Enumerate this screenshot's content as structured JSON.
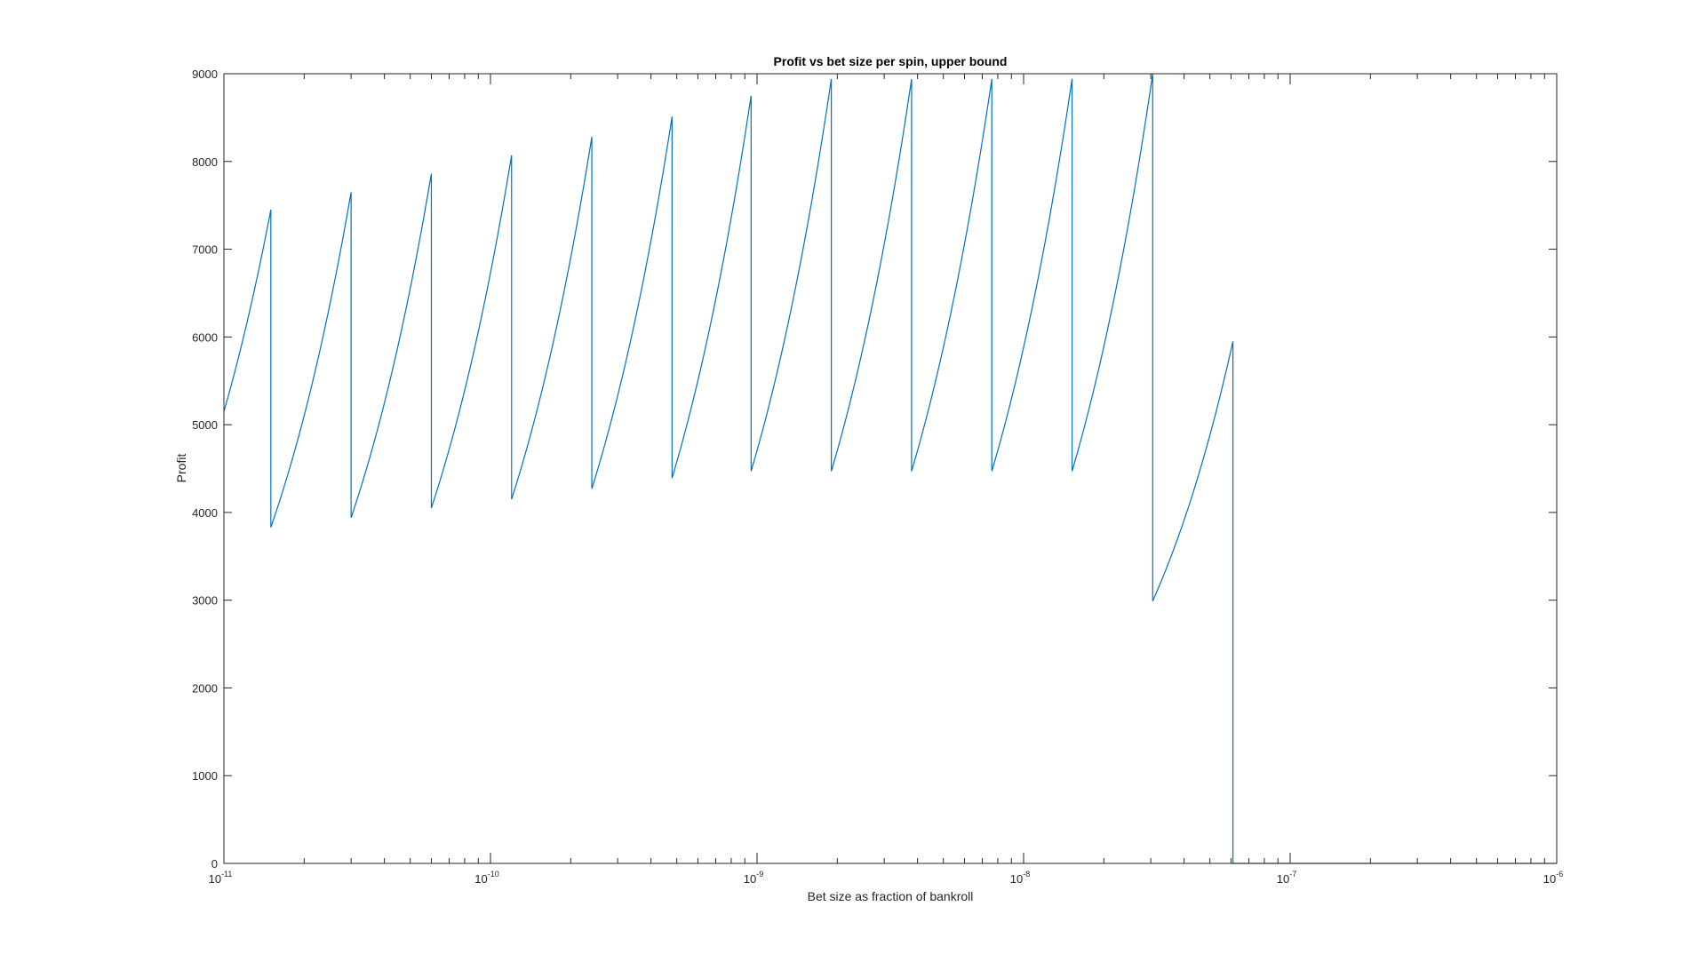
{
  "chart_data": {
    "type": "line",
    "title": "Profit vs bet size per spin, upper bound",
    "xlabel": "Bet size as fraction of bankroll",
    "ylabel": "Profit",
    "xscale": "log",
    "xlim": [
      1e-11,
      1e-06
    ],
    "ylim": [
      0,
      9000
    ],
    "grid": false,
    "legend": "none",
    "line_color": "#0072BD",
    "x_ticks": [
      {
        "base": "10",
        "exp": "-11"
      },
      {
        "base": "10",
        "exp": "-10"
      },
      {
        "base": "10",
        "exp": "-9"
      },
      {
        "base": "10",
        "exp": "-8"
      },
      {
        "base": "10",
        "exp": "-7"
      },
      {
        "base": "10",
        "exp": "-6"
      }
    ],
    "y_ticks": [
      "0",
      "1000",
      "2000",
      "3000",
      "4000",
      "5000",
      "6000",
      "7000",
      "8000",
      "9000"
    ],
    "series": [
      {
        "segments": [
          {
            "x0": 1e-11,
            "y0": 5150,
            "x1": 1.5e-11,
            "y1": 7450
          },
          {
            "x0": 1.5e-11,
            "y0": 3830,
            "x1": 3e-11,
            "y1": 7650
          },
          {
            "x0": 3e-11,
            "y0": 3940,
            "x1": 6e-11,
            "y1": 7860
          },
          {
            "x0": 6e-11,
            "y0": 4050,
            "x1": 1.2e-10,
            "y1": 8070
          },
          {
            "x0": 1.2e-10,
            "y0": 4150,
            "x1": 2.4e-10,
            "y1": 8280
          },
          {
            "x0": 2.4e-10,
            "y0": 4270,
            "x1": 4.8e-10,
            "y1": 8510
          },
          {
            "x0": 4.8e-10,
            "y0": 4390,
            "x1": 9.5e-10,
            "y1": 8750
          },
          {
            "x0": 9.5e-10,
            "y0": 4470,
            "x1": 1.9e-09,
            "y1": 8940
          },
          {
            "x0": 1.9e-09,
            "y0": 4470,
            "x1": 3.8e-09,
            "y1": 8940
          },
          {
            "x0": 3.8e-09,
            "y0": 4470,
            "x1": 7.6e-09,
            "y1": 8940
          },
          {
            "x0": 7.6e-09,
            "y0": 4470,
            "x1": 1.52e-08,
            "y1": 8940
          },
          {
            "x0": 1.52e-08,
            "y0": 4470,
            "x1": 3.05e-08,
            "y1": 9000
          },
          {
            "x0": 3.05e-08,
            "y0": 2990,
            "x1": 6.1e-08,
            "y1": 5950
          },
          {
            "x0": 6.1e-08,
            "y0": 0,
            "x1": 1e-06,
            "y1": 0
          }
        ]
      }
    ]
  }
}
